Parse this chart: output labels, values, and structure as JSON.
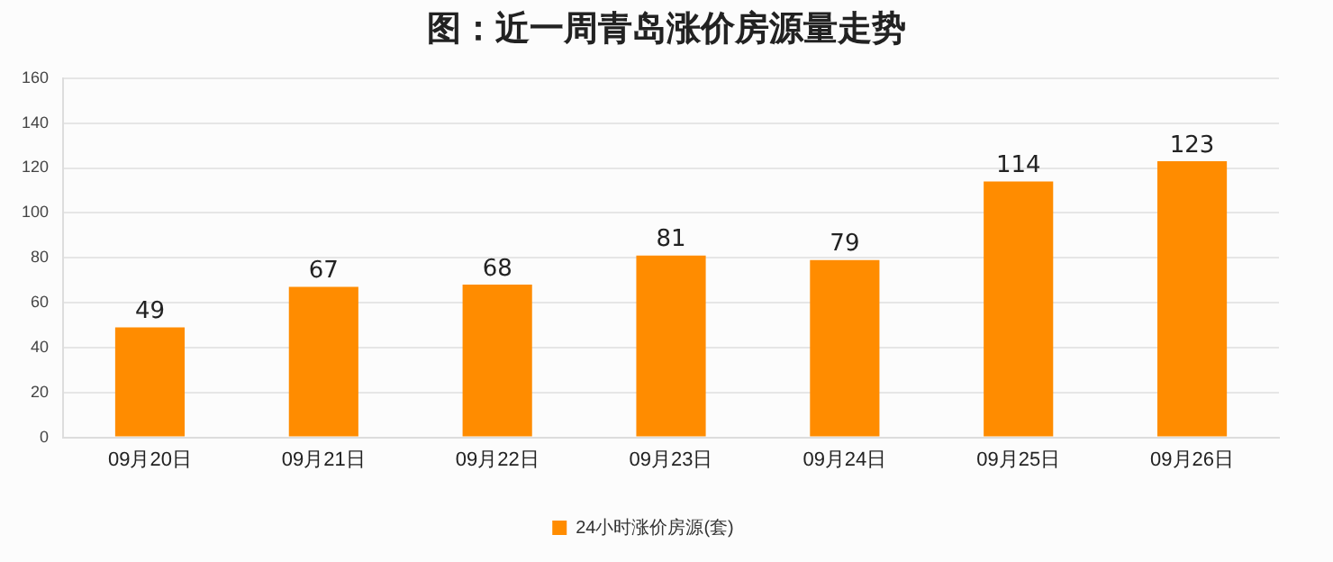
{
  "chart_data": {
    "type": "bar",
    "title": "图：近一周青岛涨价房源量走势",
    "categories": [
      "09月20日",
      "09月21日",
      "09月22日",
      "09月23日",
      "09月24日",
      "09月25日",
      "09月26日"
    ],
    "series": [
      {
        "name": "24小时涨价房源(套)",
        "color": "#ff8c00",
        "values": [
          49,
          67,
          68,
          81,
          79,
          114,
          123
        ]
      }
    ],
    "ylim": [
      0,
      160
    ],
    "yticks": [
      0,
      20,
      40,
      60,
      80,
      100,
      120,
      140,
      160
    ],
    "grid": "y",
    "legend": "bottom",
    "data_labels": true
  }
}
